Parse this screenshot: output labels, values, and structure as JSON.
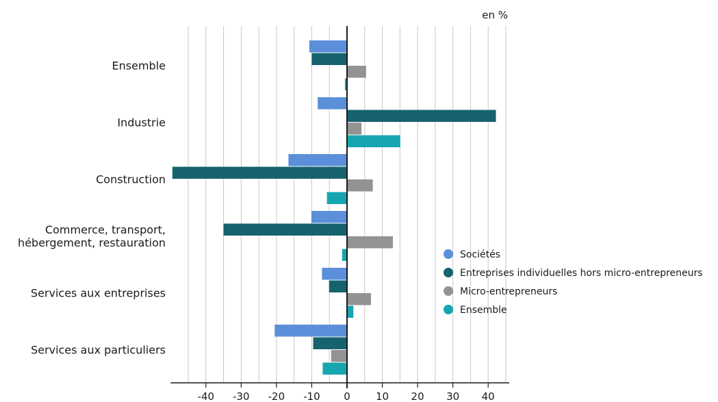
{
  "chart_data": {
    "type": "bar",
    "orientation": "horizontal",
    "unit": "en %",
    "categories": [
      [
        "Ensemble"
      ],
      [
        "Industrie"
      ],
      [
        "Construction"
      ],
      [
        "Commerce, transport,",
        "hébergement, restauration"
      ],
      [
        "Services aux entreprises"
      ],
      [
        "Services aux particuliers"
      ]
    ],
    "series": [
      {
        "name": "Sociétés",
        "color": "#5b8fd9",
        "values": [
          -10.7,
          -8.3,
          -16.6,
          -10.1,
          -7.1,
          -20.5
        ]
      },
      {
        "name": "Entreprises individuelles hors micro-entrepreneurs",
        "color": "#16636f",
        "values": [
          -10.0,
          42.2,
          -49.5,
          -35.0,
          -5.1,
          -9.6
        ]
      },
      {
        "name": "Micro-entrepreneurs",
        "color": "#939393",
        "values": [
          5.4,
          4.1,
          7.3,
          13.0,
          6.8,
          -4.5
        ]
      },
      {
        "name": "Ensemble",
        "color": "#16a6b0",
        "values": [
          -0.6,
          15.1,
          -5.7,
          -1.4,
          1.8,
          -6.9
        ]
      }
    ],
    "xlim": [
      -50,
      46
    ],
    "x_ticks": [
      -40,
      -30,
      -20,
      -10,
      0,
      10,
      20,
      30,
      40
    ],
    "grid": "vertical",
    "legend_position": "right"
  }
}
